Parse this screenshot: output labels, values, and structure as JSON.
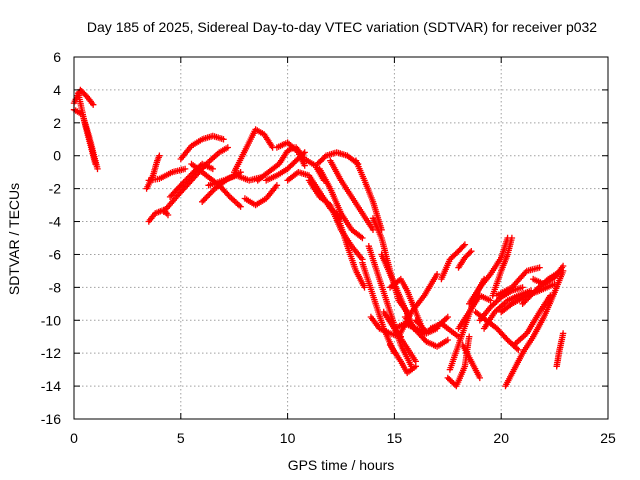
{
  "chart_data": {
    "type": "scatter",
    "title": "Day 185 of 2025, Sidereal Day-to-day VTEC variation (SDTVAR) for receiver p032",
    "xlabel": "GPS time / hours",
    "ylabel": "SDTVAR / TECUs",
    "xlim": [
      0,
      25
    ],
    "ylim": [
      -16,
      6
    ],
    "xticks": [
      0,
      5,
      10,
      15,
      20,
      25
    ],
    "yticks": [
      -16,
      -14,
      -12,
      -10,
      -8,
      -6,
      -4,
      -2,
      0,
      2,
      4,
      6
    ],
    "grid": true,
    "marker": "plus",
    "color": "#ff0000",
    "tracks": [
      [
        [
          0.0,
          3.2
        ],
        [
          0.3,
          4.0
        ],
        [
          0.6,
          3.6
        ],
        [
          0.9,
          3.1
        ]
      ],
      [
        [
          0.0,
          2.8
        ],
        [
          0.4,
          2.5
        ],
        [
          0.7,
          1.2
        ],
        [
          1.0,
          -0.3
        ],
        [
          1.1,
          -0.8
        ]
      ],
      [
        [
          0.2,
          3.8
        ],
        [
          0.5,
          2.0
        ],
        [
          0.8,
          0.5
        ],
        [
          1.0,
          -0.5
        ]
      ],
      [
        [
          3.4,
          -2.0
        ],
        [
          3.7,
          -1.2
        ],
        [
          3.9,
          -0.3
        ],
        [
          4.0,
          0.0
        ]
      ],
      [
        [
          3.5,
          -4.0
        ],
        [
          3.8,
          -3.5
        ],
        [
          4.2,
          -3.3
        ],
        [
          4.4,
          -3.6
        ]
      ],
      [
        [
          3.5,
          -1.5
        ],
        [
          4.0,
          -1.4
        ],
        [
          4.6,
          -1.0
        ],
        [
          5.2,
          -0.8
        ]
      ],
      [
        [
          4.2,
          -3.4
        ],
        [
          4.8,
          -2.5
        ],
        [
          5.5,
          -1.5
        ],
        [
          6.2,
          -0.5
        ],
        [
          6.8,
          0.2
        ],
        [
          7.2,
          0.5
        ]
      ],
      [
        [
          4.5,
          -2.5
        ],
        [
          5.0,
          -1.8
        ],
        [
          5.6,
          -1.0
        ],
        [
          6.0,
          -0.5
        ],
        [
          6.5,
          -0.8
        ]
      ],
      [
        [
          5.0,
          -0.2
        ],
        [
          5.5,
          0.6
        ],
        [
          6.0,
          1.0
        ],
        [
          6.5,
          1.2
        ],
        [
          7.0,
          1.0
        ]
      ],
      [
        [
          5.5,
          -0.5
        ],
        [
          6.2,
          -1.2
        ],
        [
          6.8,
          -1.8
        ],
        [
          7.3,
          -2.5
        ],
        [
          7.8,
          -3.1
        ]
      ],
      [
        [
          6.0,
          -2.8
        ],
        [
          6.6,
          -2.0
        ],
        [
          7.2,
          -1.4
        ],
        [
          7.8,
          -1.0
        ]
      ],
      [
        [
          6.3,
          -1.8
        ],
        [
          7.0,
          -1.5
        ],
        [
          7.6,
          -1.2
        ],
        [
          8.2,
          -1.5
        ],
        [
          8.8,
          -1.3
        ]
      ],
      [
        [
          7.5,
          -1.0
        ],
        [
          8.0,
          0.3
        ],
        [
          8.5,
          1.6
        ],
        [
          8.9,
          1.3
        ],
        [
          9.3,
          0.5
        ]
      ],
      [
        [
          8.0,
          -2.6
        ],
        [
          8.5,
          -3.0
        ],
        [
          9.0,
          -2.6
        ],
        [
          9.5,
          -1.8
        ]
      ],
      [
        [
          8.6,
          -1.5
        ],
        [
          9.1,
          -1.0
        ],
        [
          9.6,
          -0.5
        ],
        [
          10.0,
          0.3
        ],
        [
          10.3,
          0.5
        ]
      ],
      [
        [
          9.0,
          -1.5
        ],
        [
          9.5,
          -1.2
        ],
        [
          10.0,
          -0.8
        ],
        [
          10.4,
          -0.3
        ],
        [
          10.8,
          0.2
        ]
      ],
      [
        [
          9.5,
          0.5
        ],
        [
          10.0,
          0.8
        ],
        [
          10.5,
          0.2
        ],
        [
          10.8,
          -0.6
        ]
      ],
      [
        [
          10.0,
          -1.5
        ],
        [
          10.5,
          -1.0
        ],
        [
          11.0,
          -1.2
        ],
        [
          11.5,
          -2.2
        ],
        [
          12.0,
          -3.2
        ],
        [
          12.5,
          -3.8
        ]
      ],
      [
        [
          10.4,
          0.5
        ],
        [
          10.8,
          -0.2
        ],
        [
          11.3,
          -0.6
        ],
        [
          11.7,
          -1.5
        ]
      ],
      [
        [
          11.0,
          -1.5
        ],
        [
          11.5,
          -2.5
        ],
        [
          12.0,
          -3.0
        ],
        [
          12.5,
          -4.5
        ],
        [
          13.0,
          -5.5
        ],
        [
          13.5,
          -6.3
        ]
      ],
      [
        [
          11.4,
          -0.5
        ],
        [
          11.8,
          0.0
        ],
        [
          12.3,
          0.2
        ],
        [
          12.8,
          0.0
        ],
        [
          13.3,
          -0.5
        ]
      ],
      [
        [
          11.5,
          -0.8
        ],
        [
          12.0,
          -2.0
        ],
        [
          12.5,
          -3.5
        ],
        [
          13.0,
          -4.5
        ],
        [
          13.5,
          -5.0
        ]
      ],
      [
        [
          12.0,
          -0.3
        ],
        [
          12.5,
          -1.5
        ],
        [
          13.0,
          -2.5
        ],
        [
          13.5,
          -3.5
        ],
        [
          14.0,
          -4.5
        ]
      ],
      [
        [
          12.3,
          -3.5
        ],
        [
          12.8,
          -5.5
        ],
        [
          13.2,
          -7.0
        ],
        [
          13.6,
          -8.0
        ]
      ],
      [
        [
          13.2,
          -0.3
        ],
        [
          13.6,
          -1.5
        ],
        [
          14.0,
          -2.8
        ],
        [
          14.4,
          -4.5
        ]
      ],
      [
        [
          13.5,
          -6.5
        ],
        [
          14.0,
          -8.5
        ],
        [
          14.5,
          -10.5
        ],
        [
          15.0,
          -12.0
        ]
      ],
      [
        [
          13.8,
          -5.5
        ],
        [
          14.3,
          -7.5
        ],
        [
          14.8,
          -9.5
        ],
        [
          15.3,
          -11.5
        ],
        [
          15.8,
          -12.8
        ]
      ],
      [
        [
          14.0,
          -3.8
        ],
        [
          14.4,
          -5.0
        ],
        [
          14.8,
          -7.0
        ],
        [
          15.2,
          -8.8
        ],
        [
          15.6,
          -9.5
        ]
      ],
      [
        [
          14.4,
          -6.0
        ],
        [
          14.9,
          -7.5
        ],
        [
          15.4,
          -9.0
        ],
        [
          15.9,
          -10.5
        ]
      ],
      [
        [
          13.9,
          -9.8
        ],
        [
          14.3,
          -10.5
        ],
        [
          14.8,
          -10.8
        ],
        [
          15.3,
          -11.0
        ]
      ],
      [
        [
          14.5,
          -9.5
        ],
        [
          15.0,
          -10.5
        ],
        [
          15.5,
          -11.5
        ],
        [
          16.0,
          -12.5
        ]
      ],
      [
        [
          14.8,
          -11.5
        ],
        [
          15.3,
          -12.5
        ],
        [
          15.6,
          -13.2
        ],
        [
          16.0,
          -12.8
        ]
      ],
      [
        [
          14.8,
          -8.0
        ],
        [
          15.3,
          -7.5
        ],
        [
          15.6,
          -8.2
        ],
        [
          16.0,
          -9.5
        ],
        [
          16.4,
          -10.8
        ]
      ],
      [
        [
          15.0,
          -10.5
        ],
        [
          15.5,
          -10.2
        ],
        [
          16.0,
          -10.5
        ],
        [
          16.5,
          -10.8
        ],
        [
          17.0,
          -10.5
        ]
      ],
      [
        [
          15.2,
          -11.0
        ],
        [
          15.8,
          -9.5
        ],
        [
          16.4,
          -8.5
        ],
        [
          17.0,
          -7.2
        ]
      ],
      [
        [
          15.5,
          -9.8
        ],
        [
          16.0,
          -10.6
        ],
        [
          16.5,
          -11.3
        ],
        [
          17.0,
          -11.6
        ],
        [
          17.5,
          -11.2
        ]
      ],
      [
        [
          16.0,
          -10.0
        ],
        [
          16.5,
          -10.7
        ],
        [
          17.0,
          -10.4
        ],
        [
          17.5,
          -9.8
        ]
      ],
      [
        [
          16.7,
          -10.5
        ],
        [
          17.2,
          -10.2
        ],
        [
          17.6,
          -10.6
        ],
        [
          18.0,
          -11.0
        ]
      ],
      [
        [
          17.2,
          -7.5
        ],
        [
          17.6,
          -6.3
        ],
        [
          18.0,
          -5.8
        ],
        [
          18.3,
          -5.4
        ]
      ],
      [
        [
          17.5,
          -13.5
        ],
        [
          17.9,
          -14.0
        ],
        [
          18.3,
          -12.8
        ],
        [
          18.5,
          -11.0
        ]
      ],
      [
        [
          17.6,
          -13.0
        ],
        [
          18.0,
          -11.5
        ],
        [
          18.4,
          -10.0
        ],
        [
          18.8,
          -8.5
        ],
        [
          19.2,
          -7.5
        ]
      ],
      [
        [
          18.0,
          -6.8
        ],
        [
          18.3,
          -6.2
        ],
        [
          18.6,
          -5.8
        ]
      ],
      [
        [
          18.0,
          -10.5
        ],
        [
          18.5,
          -9.5
        ],
        [
          19.0,
          -8.5
        ],
        [
          19.5,
          -8.8
        ]
      ],
      [
        [
          18.2,
          -11.5
        ],
        [
          18.6,
          -12.5
        ],
        [
          19.0,
          -13.5
        ]
      ],
      [
        [
          18.5,
          -9.0
        ],
        [
          19.0,
          -8.0
        ],
        [
          19.5,
          -7.2
        ],
        [
          20.0,
          -6.2
        ],
        [
          20.3,
          -5.0
        ]
      ],
      [
        [
          18.8,
          -9.5
        ],
        [
          19.3,
          -10.0
        ],
        [
          19.8,
          -10.5
        ],
        [
          20.3,
          -11.2
        ],
        [
          20.8,
          -11.8
        ]
      ],
      [
        [
          19.0,
          -10.0
        ],
        [
          19.5,
          -9.2
        ],
        [
          20.0,
          -8.6
        ],
        [
          20.5,
          -8.2
        ],
        [
          21.0,
          -8.0
        ]
      ],
      [
        [
          19.2,
          -10.5
        ],
        [
          19.7,
          -9.5
        ],
        [
          20.3,
          -8.8
        ],
        [
          20.8,
          -8.5
        ],
        [
          21.4,
          -8.2
        ]
      ],
      [
        [
          19.6,
          -8.5
        ],
        [
          20.0,
          -7.0
        ],
        [
          20.3,
          -6.0
        ],
        [
          20.5,
          -5.0
        ]
      ],
      [
        [
          19.8,
          -8.5
        ],
        [
          20.5,
          -8.0
        ],
        [
          21.2,
          -7.0
        ],
        [
          21.8,
          -6.8
        ]
      ],
      [
        [
          20.0,
          -9.5
        ],
        [
          20.5,
          -9.0
        ],
        [
          21.2,
          -8.5
        ],
        [
          21.8,
          -8.2
        ],
        [
          22.5,
          -7.8
        ]
      ],
      [
        [
          20.2,
          -14.0
        ],
        [
          20.6,
          -13.0
        ],
        [
          21.0,
          -12.0
        ],
        [
          21.5,
          -11.0
        ],
        [
          22.0,
          -9.8
        ],
        [
          22.5,
          -8.3
        ],
        [
          22.9,
          -7.0
        ]
      ],
      [
        [
          20.6,
          -11.5
        ],
        [
          21.2,
          -10.8
        ],
        [
          21.8,
          -9.5
        ],
        [
          22.3,
          -8.5
        ]
      ],
      [
        [
          21.0,
          -9.0
        ],
        [
          21.6,
          -8.2
        ],
        [
          22.2,
          -7.5
        ],
        [
          22.8,
          -7.0
        ]
      ],
      [
        [
          21.5,
          -7.5
        ],
        [
          22.0,
          -7.8
        ],
        [
          22.5,
          -7.4
        ],
        [
          22.9,
          -6.7
        ]
      ],
      [
        [
          22.6,
          -12.8
        ],
        [
          22.7,
          -12.0
        ],
        [
          22.8,
          -11.4
        ],
        [
          22.9,
          -10.8
        ]
      ]
    ]
  }
}
